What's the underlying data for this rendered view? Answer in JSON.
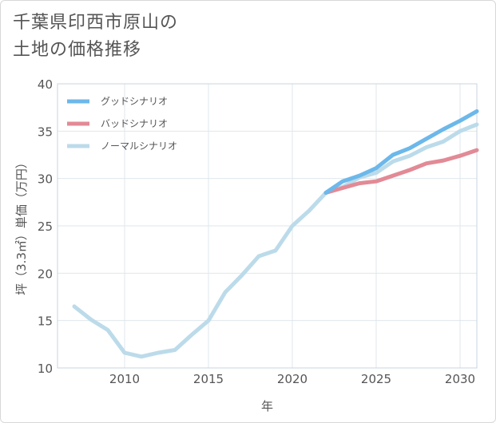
{
  "title_line1": "千葉県印西市原山の",
  "title_line2": "土地の価格推移",
  "chart_data": {
    "type": "line",
    "xlabel": "年",
    "ylabel": "坪（3.3㎡）単価（万円）",
    "xlim": [
      2006,
      2031
    ],
    "ylim": [
      10,
      40
    ],
    "xticks": [
      2010,
      2015,
      2020,
      2025,
      2030
    ],
    "yticks": [
      10,
      15,
      20,
      25,
      30,
      35,
      40
    ],
    "grid": true,
    "legend_position": "top-left",
    "series": [
      {
        "name": "グッドシナリオ",
        "color": "#6cb8ea",
        "x": [
          2022,
          2023,
          2024,
          2025,
          2026,
          2027,
          2028,
          2029,
          2030,
          2031
        ],
        "y": [
          28.5,
          29.7,
          30.3,
          31.1,
          32.5,
          33.2,
          34.2,
          35.2,
          36.1,
          37.1
        ]
      },
      {
        "name": "バッドシナリオ",
        "color": "#e28a96",
        "x": [
          2022,
          2023,
          2024,
          2025,
          2026,
          2027,
          2028,
          2029,
          2030,
          2031
        ],
        "y": [
          28.5,
          29.0,
          29.5,
          29.7,
          30.3,
          30.9,
          31.6,
          31.9,
          32.4,
          33.0
        ]
      },
      {
        "name": "ノーマルシナリオ",
        "color": "#bcdbea",
        "x": [
          2007,
          2008,
          2009,
          2010,
          2011,
          2012,
          2013,
          2014,
          2015,
          2016,
          2017,
          2018,
          2019,
          2020,
          2021,
          2022,
          2023,
          2024,
          2025,
          2026,
          2027,
          2028,
          2029,
          2030,
          2031
        ],
        "y": [
          16.5,
          15.1,
          14.0,
          11.6,
          11.2,
          11.6,
          11.9,
          13.5,
          15.0,
          18.0,
          19.8,
          21.8,
          22.4,
          25.0,
          26.6,
          28.5,
          29.1,
          30.1,
          30.6,
          31.8,
          32.4,
          33.3,
          33.9,
          35.0,
          35.7
        ]
      }
    ]
  }
}
